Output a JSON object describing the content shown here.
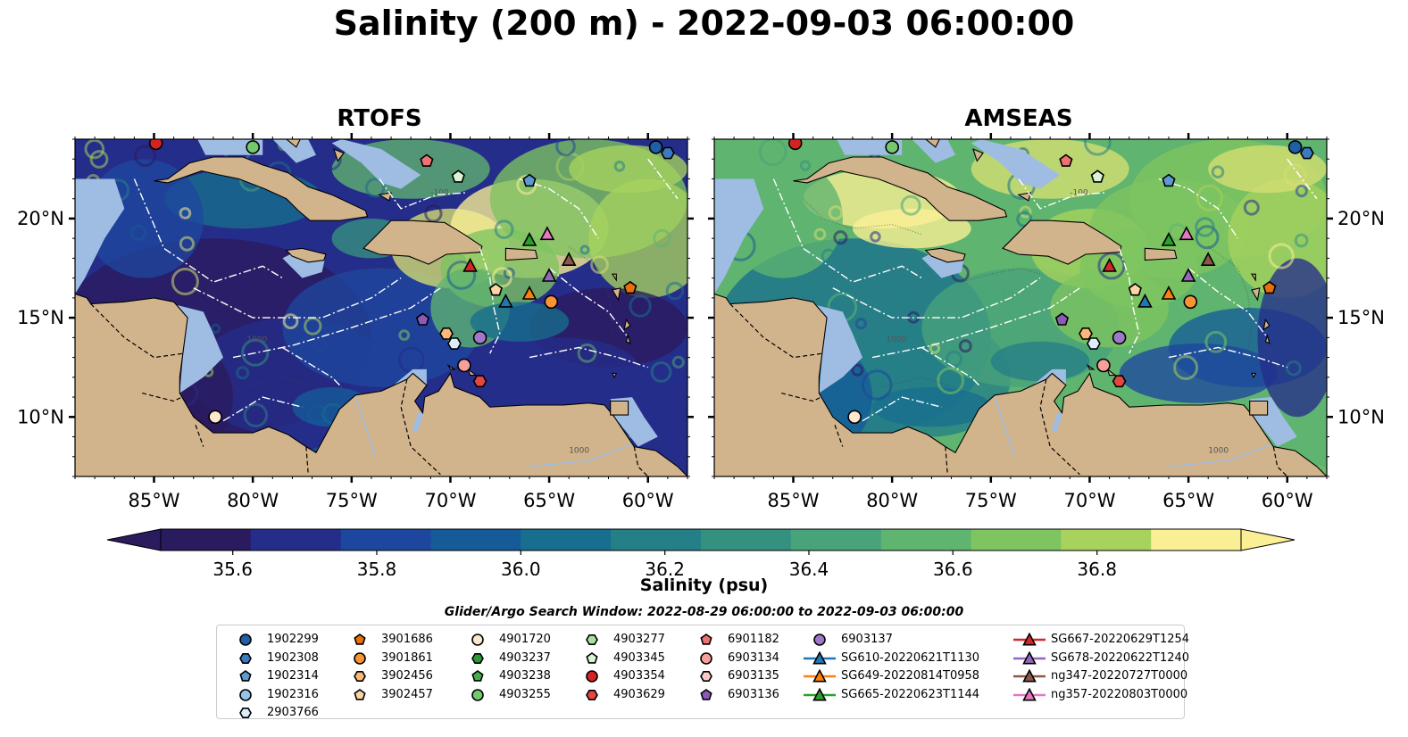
{
  "title": "Salinity (200 m) - 2022-09-03 06:00:00",
  "panels": [
    {
      "title": "RTOFS",
      "regime": "rtofs"
    },
    {
      "title": "AMSEAS",
      "regime": "amseas"
    }
  ],
  "map": {
    "lon_range": [
      -89,
      -58
    ],
    "lat_range": [
      7,
      24
    ],
    "lon_ticks": [
      "85°W",
      "80°W",
      "75°W",
      "70°W",
      "65°W",
      "60°W"
    ],
    "lon_tick_values": [
      -85,
      -80,
      -75,
      -70,
      -65,
      -60
    ],
    "lat_ticks": [
      "20°N",
      "15°N",
      "10°N"
    ],
    "lat_tick_values": [
      20,
      15,
      10
    ],
    "contour_labels": [
      "1000",
      "1000",
      "-100"
    ],
    "colors": {
      "land": "#d2b48c",
      "shallow_water": "#9fbde3",
      "eez_lines": "#ffffff",
      "coast": "#000000"
    }
  },
  "colorbar": {
    "label": "Salinity (psu)",
    "ticks": [
      "35.6",
      "35.8",
      "36.0",
      "36.2",
      "36.4",
      "36.6",
      "36.8"
    ],
    "tick_values": [
      35.6,
      35.8,
      36.0,
      36.2,
      36.4,
      36.6,
      36.8
    ],
    "min": 35.5,
    "max": 37.0,
    "extend": "both",
    "colormap": [
      "#2a1a5e",
      "#252d8a",
      "#1d469e",
      "#155b98",
      "#176e8e",
      "#257f86",
      "#34917f",
      "#48a27a",
      "#5fb46f",
      "#7ec460",
      "#a6d25d",
      "#d6df72",
      "#fbef95"
    ]
  },
  "search_window": "Glider/Argo Search Window: 2022-08-29 06:00:00 to 2022-09-03 06:00:00",
  "legend": [
    {
      "label": "1902299",
      "marker": "circle",
      "color": "#1f5fa8"
    },
    {
      "label": "1902308",
      "marker": "hexagon",
      "color": "#3a7bc1"
    },
    {
      "label": "1902314",
      "marker": "pentagon",
      "color": "#5d9ad3"
    },
    {
      "label": "1902316",
      "marker": "circle",
      "color": "#97c4ea"
    },
    {
      "label": "2903766",
      "marker": "hexagon",
      "color": "#ddeefb"
    },
    {
      "label": "3901686",
      "marker": "pentagon",
      "color": "#e8700c"
    },
    {
      "label": "3901861",
      "marker": "circle",
      "color": "#f79436"
    },
    {
      "label": "3902456",
      "marker": "hexagon",
      "color": "#fbb879"
    },
    {
      "label": "3902457",
      "marker": "pentagon",
      "color": "#fdd2a4"
    },
    {
      "label": "4901720",
      "marker": "circle",
      "color": "#fde8cf"
    },
    {
      "label": "4903237",
      "marker": "hexagon",
      "color": "#2c9a36"
    },
    {
      "label": "4903238",
      "marker": "pentagon",
      "color": "#45b04b"
    },
    {
      "label": "4903255",
      "marker": "circle",
      "color": "#73c96b"
    },
    {
      "label": "4903277",
      "marker": "hexagon",
      "color": "#a9e0a0"
    },
    {
      "label": "4903345",
      "marker": "pentagon",
      "color": "#dbf3d5"
    },
    {
      "label": "4903354",
      "marker": "circle",
      "color": "#d52324"
    },
    {
      "label": "4903629",
      "marker": "hexagon",
      "color": "#e5463f"
    },
    {
      "label": "6901182",
      "marker": "pentagon",
      "color": "#f07171"
    },
    {
      "label": "6903134",
      "marker": "circle",
      "color": "#f6a09b"
    },
    {
      "label": "6903135",
      "marker": "hexagon",
      "color": "#fbcac5"
    },
    {
      "label": "6903136",
      "marker": "pentagon",
      "color": "#8b5ab8"
    },
    {
      "label": "6903137",
      "marker": "circle",
      "color": "#9f78c9"
    },
    {
      "label": "SG610-20220621T1130",
      "marker": "triangle-line",
      "color": "#1f77b4"
    },
    {
      "label": "SG649-20220814T0958",
      "marker": "triangle-line",
      "color": "#ff7f0e"
    },
    {
      "label": "SG665-20220623T1144",
      "marker": "triangle-line",
      "color": "#2ca02c"
    },
    {
      "label": "SG667-20220629T1254",
      "marker": "triangle-line",
      "color": "#d62728"
    },
    {
      "label": "SG678-20220622T1240",
      "marker": "triangle-line",
      "color": "#9467bd"
    },
    {
      "label": "ng347-20220727T0000",
      "marker": "triangle-line",
      "color": "#8c564b"
    },
    {
      "label": "ng357-20220803T0000",
      "marker": "triangle-line",
      "color": "#e377c2"
    }
  ],
  "observations": [
    {
      "id": "1902299",
      "lon": -59.6,
      "lat": 23.6,
      "marker": "circle",
      "color": "#1f5fa8"
    },
    {
      "id": "1902308",
      "lon": -59.0,
      "lat": 23.3,
      "marker": "hexagon",
      "color": "#3a7bc1"
    },
    {
      "id": "1902314",
      "lon": -66.0,
      "lat": 21.9,
      "marker": "pentagon",
      "color": "#5d9ad3"
    },
    {
      "id": "2903766",
      "lon": -69.8,
      "lat": 13.7,
      "marker": "hexagon",
      "color": "#ddeefb"
    },
    {
      "id": "3901686",
      "lon": -60.9,
      "lat": 16.5,
      "marker": "pentagon",
      "color": "#e8700c"
    },
    {
      "id": "3901861",
      "lon": -64.9,
      "lat": 15.8,
      "marker": "circle",
      "color": "#f79436"
    },
    {
      "id": "3902456",
      "lon": -70.2,
      "lat": 14.2,
      "marker": "hexagon",
      "color": "#fbb879"
    },
    {
      "id": "3902457",
      "lon": -67.7,
      "lat": 16.4,
      "marker": "pentagon",
      "color": "#fdd2a4"
    },
    {
      "id": "4901720",
      "lon": -81.9,
      "lat": 10.0,
      "marker": "circle",
      "color": "#fde8cf"
    },
    {
      "id": "4903255",
      "lon": -80.0,
      "lat": 23.6,
      "marker": "circle",
      "color": "#73c96b"
    },
    {
      "id": "4903345",
      "lon": -69.6,
      "lat": 22.1,
      "marker": "pentagon",
      "color": "#dbf3d5"
    },
    {
      "id": "4903354",
      "lon": -84.9,
      "lat": 23.8,
      "marker": "circle",
      "color": "#d52324"
    },
    {
      "id": "4903629",
      "lon": -68.5,
      "lat": 11.8,
      "marker": "hexagon",
      "color": "#e5463f"
    },
    {
      "id": "6901182",
      "lon": -71.2,
      "lat": 22.9,
      "marker": "pentagon",
      "color": "#f07171"
    },
    {
      "id": "6903134",
      "lon": -69.3,
      "lat": 12.6,
      "marker": "circle",
      "color": "#f6a09b"
    },
    {
      "id": "6903136",
      "lon": -71.4,
      "lat": 14.9,
      "marker": "pentagon",
      "color": "#8b5ab8"
    },
    {
      "id": "6903137",
      "lon": -68.5,
      "lat": 14.0,
      "marker": "circle",
      "color": "#9f78c9"
    },
    {
      "id": "SG610-20220621T1130",
      "lon": -67.2,
      "lat": 15.8,
      "marker": "triangle",
      "color": "#1f77b4"
    },
    {
      "id": "SG649-20220814T0958",
      "lon": -66.0,
      "lat": 16.2,
      "marker": "triangle",
      "color": "#ff7f0e"
    },
    {
      "id": "SG665-20220623T1144",
      "lon": -66.0,
      "lat": 18.9,
      "marker": "triangle",
      "color": "#2ca02c"
    },
    {
      "id": "SG667-20220629T1254",
      "lon": -69.0,
      "lat": 17.6,
      "marker": "triangle",
      "color": "#d62728"
    },
    {
      "id": "SG678-20220622T1240",
      "lon": -65.0,
      "lat": 17.1,
      "marker": "triangle",
      "color": "#9467bd"
    },
    {
      "id": "ng347-20220727T0000",
      "lon": -64.0,
      "lat": 17.9,
      "marker": "triangle",
      "color": "#8c564b"
    },
    {
      "id": "ng357-20220803T0000",
      "lon": -65.1,
      "lat": 19.2,
      "marker": "triangle",
      "color": "#e377c2"
    }
  ]
}
